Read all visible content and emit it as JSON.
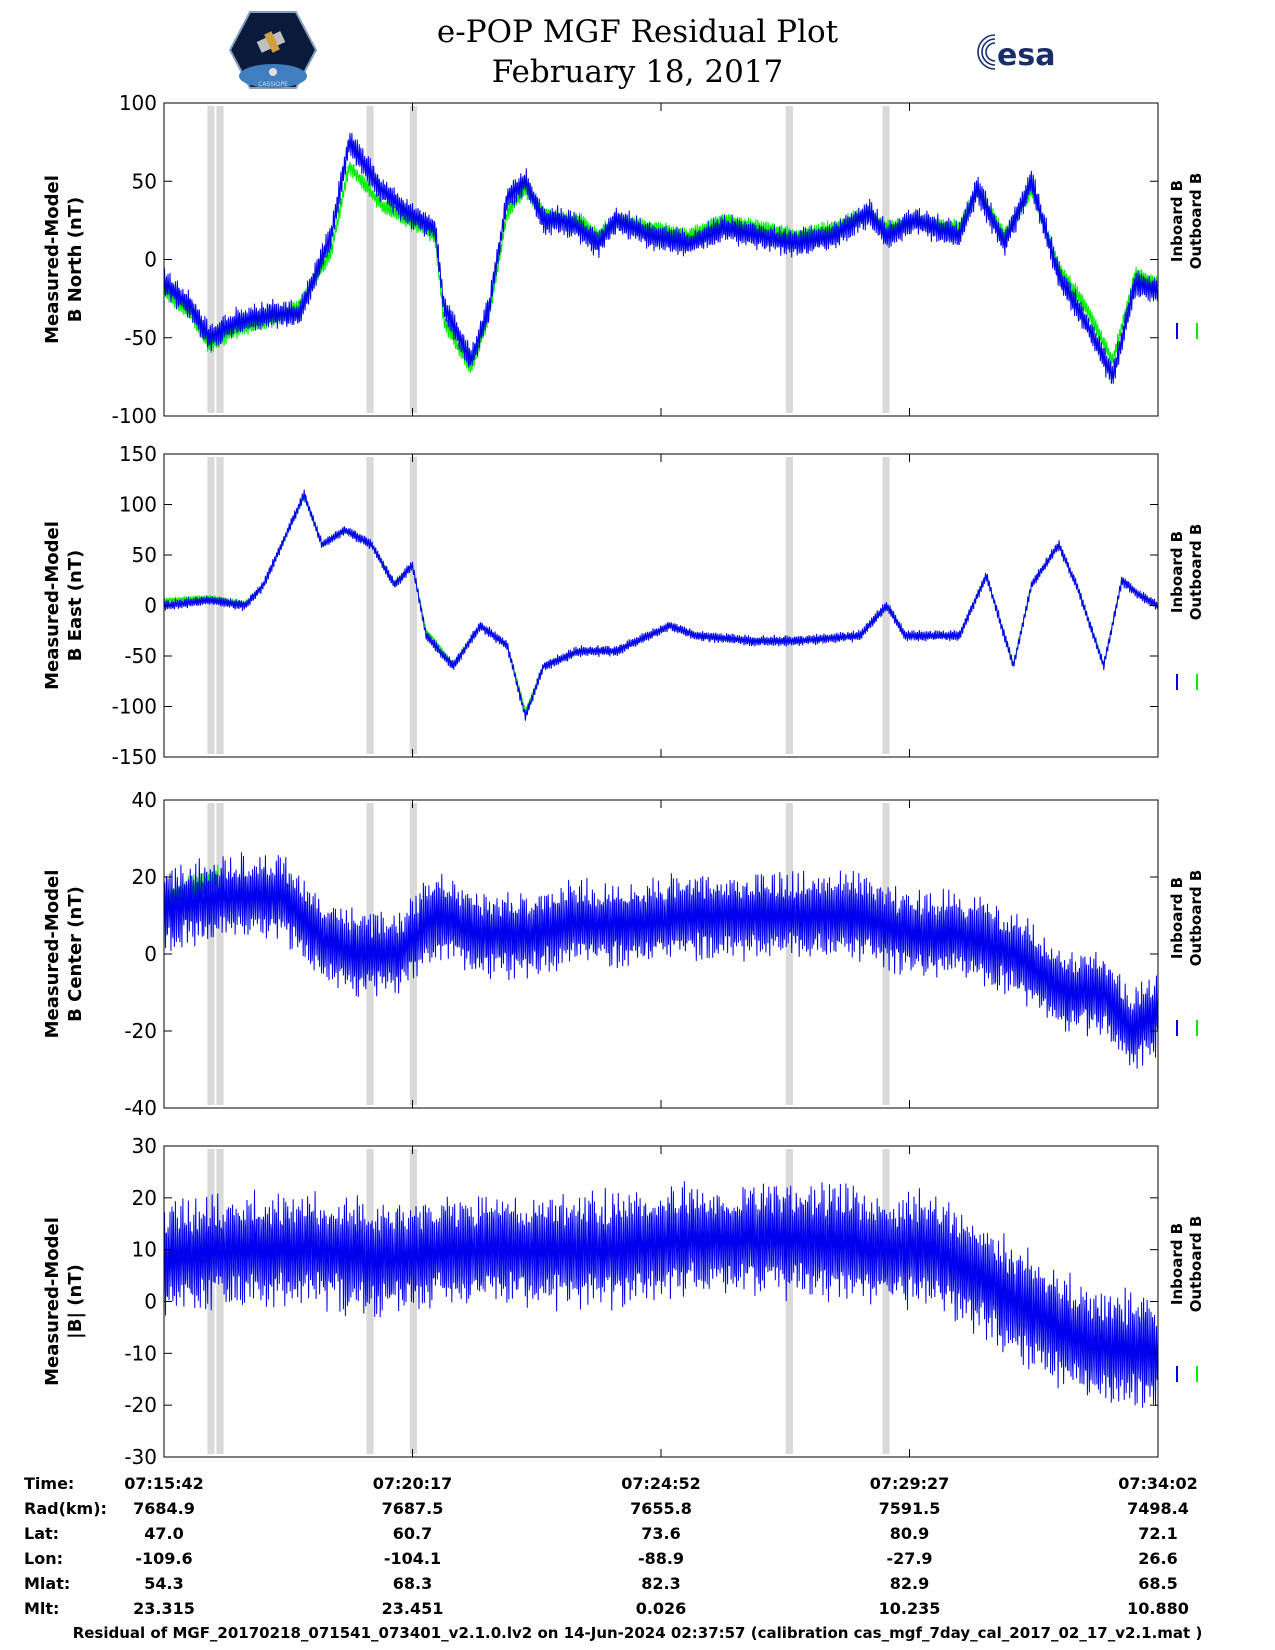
{
  "header": {
    "title": "e-POP MGF Residual Plot",
    "date": "February 18, 2017",
    "logo_left": "CASSIOPE",
    "logo_right": "esa"
  },
  "panels": [
    {
      "ylabel_line1": "Measured-Model",
      "ylabel_line2": "B North (nT)",
      "legend": [
        "Inboard B",
        "Outboard B"
      ]
    },
    {
      "ylabel_line1": "Measured-Model",
      "ylabel_line2": "B East (nT)",
      "legend": [
        "Inboard B",
        "Outboard B"
      ]
    },
    {
      "ylabel_line1": "Measured-Model",
      "ylabel_line2": "B Center (nT)",
      "legend": [
        "Inboard B",
        "Outboard B"
      ]
    },
    {
      "ylabel_line1": "Measured-Model",
      "ylabel_line2": "|B| (nT)",
      "legend": [
        "Inboard B",
        "Outboard B"
      ]
    }
  ],
  "orbit_table": {
    "labels": [
      "Time:",
      "Rad(km):",
      "Lat:",
      "Lon:",
      "Mlat:",
      "Mlt:"
    ],
    "columns": [
      [
        "07:15:42",
        "7684.9",
        "47.0",
        "-109.6",
        "54.3",
        "23.315"
      ],
      [
        "07:20:17",
        "7687.5",
        "60.7",
        "-104.1",
        "68.3",
        "23.451"
      ],
      [
        "07:24:52",
        "7655.8",
        "73.6",
        "-88.9",
        "82.3",
        "0.026"
      ],
      [
        "07:29:27",
        "7591.5",
        "80.9",
        "-27.9",
        "82.9",
        "10.235"
      ],
      [
        "07:34:02",
        "7498.4",
        "72.1",
        "26.6",
        "68.5",
        "10.880"
      ]
    ]
  },
  "footer": "Residual of MGF_20170218_071541_073401_v2.1.0.lv2 on 14-Jun-2024 02:37:57 (calibration cas_mgf_7day_cal_2017_02_17_v2.1.mat )",
  "colors": {
    "inboard": "#0000ee",
    "outboard": "#00ee00",
    "gap": "#d9d9d9"
  },
  "chart_data": [
    {
      "type": "line",
      "x_unit": "seconds after 07:15:42",
      "x_ticks": [
        "07:15:42",
        "07:20:17",
        "07:24:52",
        "07:29:27",
        "07:34:02"
      ],
      "xlim": [
        0,
        1100
      ],
      "ylim": [
        -100,
        100
      ],
      "yticks": [
        -100,
        -50,
        0,
        50,
        100
      ],
      "gaps": [
        [
          48,
          56
        ],
        [
          58,
          66
        ],
        [
          224,
          232
        ],
        [
          272,
          280
        ],
        [
          688,
          696
        ],
        [
          795,
          803
        ]
      ],
      "series": [
        {
          "name": "Inboard B",
          "x": [
            0,
            30,
            50,
            80,
            120,
            150,
            185,
            205,
            240,
            270,
            300,
            310,
            340,
            360,
            380,
            400,
            420,
            440,
            460,
            480,
            500,
            540,
            580,
            620,
            660,
            700,
            740,
            780,
            800,
            830,
            880,
            900,
            930,
            960,
            990,
            1020,
            1050,
            1075,
            1100
          ],
          "y": [
            -15,
            -30,
            -50,
            -40,
            -35,
            -35,
            15,
            75,
            45,
            30,
            20,
            -30,
            -65,
            -30,
            40,
            50,
            25,
            25,
            20,
            10,
            25,
            15,
            10,
            20,
            15,
            10,
            15,
            30,
            15,
            25,
            15,
            45,
            10,
            50,
            -10,
            -40,
            -75,
            -15,
            -20
          ],
          "amplitude": 10
        },
        {
          "name": "Outboard B",
          "x": [
            0,
            30,
            50,
            80,
            120,
            150,
            185,
            205,
            240,
            270,
            300,
            310,
            340,
            360,
            380,
            400,
            420,
            440,
            460,
            480,
            500,
            540,
            580,
            620,
            660,
            700,
            740,
            780,
            800,
            830,
            880,
            900,
            930,
            960,
            990,
            1020,
            1050,
            1075,
            1100
          ],
          "y": [
            -20,
            -35,
            -55,
            -45,
            -38,
            -30,
            5,
            60,
            35,
            25,
            15,
            -40,
            -70,
            -35,
            30,
            45,
            30,
            25,
            25,
            15,
            25,
            20,
            15,
            25,
            20,
            15,
            20,
            30,
            20,
            25,
            20,
            45,
            15,
            45,
            -5,
            -30,
            -65,
            -10,
            -15
          ],
          "amplitude": 6
        }
      ]
    },
    {
      "type": "line",
      "x_unit": "seconds after 07:15:42",
      "x_ticks": [
        "07:15:42",
        "07:20:17",
        "07:24:52",
        "07:29:27",
        "07:34:02"
      ],
      "xlim": [
        0,
        1100
      ],
      "ylim": [
        -150,
        150
      ],
      "yticks": [
        -150,
        -100,
        -50,
        0,
        50,
        100,
        150
      ],
      "gaps": [
        [
          48,
          56
        ],
        [
          58,
          66
        ],
        [
          224,
          232
        ],
        [
          272,
          280
        ],
        [
          688,
          696
        ],
        [
          795,
          803
        ]
      ],
      "series": [
        {
          "name": "Inboard B",
          "x": [
            0,
            50,
            90,
            110,
            155,
            175,
            200,
            230,
            255,
            275,
            290,
            320,
            350,
            380,
            400,
            420,
            460,
            500,
            560,
            590,
            650,
            700,
            770,
            800,
            820,
            880,
            910,
            940,
            960,
            990,
            1010,
            1040,
            1060,
            1080,
            1100
          ],
          "y": [
            0,
            5,
            0,
            20,
            110,
            60,
            75,
            60,
            20,
            40,
            -30,
            -60,
            -20,
            -40,
            -110,
            -60,
            -45,
            -45,
            -20,
            -30,
            -35,
            -35,
            -30,
            0,
            -30,
            -30,
            30,
            -60,
            20,
            60,
            20,
            -60,
            25,
            10,
            0
          ],
          "amplitude": 6
        },
        {
          "name": "Outboard B",
          "x": [
            0,
            50,
            90,
            110,
            155,
            175,
            200,
            230,
            255,
            275,
            290,
            320,
            350,
            380,
            400,
            420,
            460,
            500,
            560,
            590,
            650,
            700,
            770,
            800,
            820,
            880,
            910,
            940,
            960,
            990,
            1010,
            1040,
            1060,
            1080,
            1100
          ],
          "y": [
            5,
            8,
            2,
            20,
            108,
            60,
            74,
            60,
            22,
            40,
            -25,
            -58,
            -20,
            -40,
            -105,
            -60,
            -45,
            -45,
            -20,
            -30,
            -35,
            -35,
            -30,
            0,
            -30,
            -30,
            30,
            -58,
            20,
            60,
            20,
            -58,
            25,
            10,
            0
          ],
          "amplitude": 3
        }
      ]
    },
    {
      "type": "line",
      "x_unit": "seconds after 07:15:42",
      "x_ticks": [
        "07:15:42",
        "07:20:17",
        "07:24:52",
        "07:29:27",
        "07:34:02"
      ],
      "xlim": [
        0,
        1100
      ],
      "ylim": [
        -40,
        40
      ],
      "yticks": [
        -40,
        -20,
        0,
        20,
        40
      ],
      "gaps": [
        [
          48,
          56
        ],
        [
          58,
          66
        ],
        [
          224,
          232
        ],
        [
          272,
          280
        ],
        [
          688,
          696
        ],
        [
          795,
          803
        ]
      ],
      "series": [
        {
          "name": "Inboard B",
          "x": [
            0,
            60,
            130,
            170,
            210,
            260,
            300,
            350,
            400,
            460,
            520,
            600,
            680,
            760,
            830,
            880,
            940,
            1000,
            1040,
            1070,
            1100
          ],
          "y": [
            12,
            15,
            15,
            5,
            0,
            0,
            10,
            5,
            5,
            8,
            8,
            10,
            10,
            10,
            5,
            5,
            0,
            -10,
            -10,
            -20,
            -15
          ],
          "amplitude": 12
        },
        {
          "name": "Outboard B",
          "x": [
            0,
            30,
            60
          ],
          "y": [
            14,
            17,
            20
          ],
          "amplitude": 4
        }
      ]
    },
    {
      "type": "line",
      "x_unit": "seconds after 07:15:42",
      "x_ticks": [
        "07:15:42",
        "07:20:17",
        "07:24:52",
        "07:29:27",
        "07:34:02"
      ],
      "xlim": [
        0,
        1100
      ],
      "ylim": [
        -30,
        30
      ],
      "yticks": [
        -30,
        -20,
        -10,
        0,
        10,
        20,
        30
      ],
      "gaps": [
        [
          48,
          56
        ],
        [
          58,
          66
        ],
        [
          224,
          232
        ],
        [
          272,
          280
        ],
        [
          688,
          696
        ],
        [
          795,
          803
        ]
      ],
      "series": [
        {
          "name": "Inboard B",
          "x": [
            0,
            60,
            160,
            250,
            330,
            420,
            500,
            580,
            640,
            720,
            800,
            850,
            900,
            960,
            1020,
            1100
          ],
          "y": [
            8,
            10,
            10,
            8,
            10,
            10,
            10,
            12,
            12,
            12,
            10,
            10,
            5,
            -2,
            -8,
            -10
          ],
          "amplitude": 12
        },
        {
          "name": "Outboard B",
          "x": [
            0,
            30,
            60
          ],
          "y": [
            8,
            9,
            9
          ],
          "amplitude": 4
        }
      ]
    }
  ]
}
